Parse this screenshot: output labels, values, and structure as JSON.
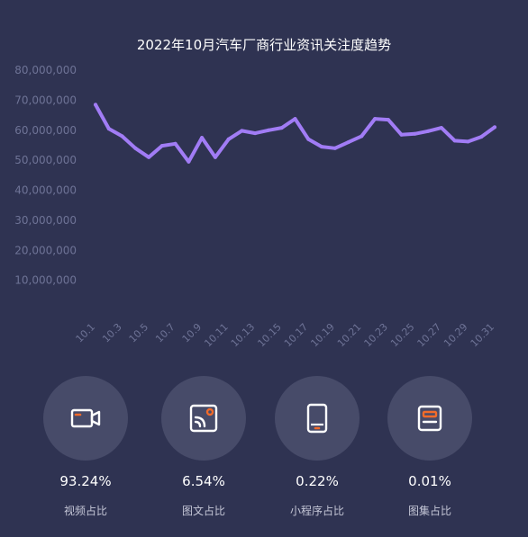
{
  "chart_data": {
    "type": "line",
    "title": "2022年10月汽车厂商行业资讯关注度趋势",
    "xlabel": "",
    "ylabel": "",
    "ylim": [
      0,
      80000000
    ],
    "yticks": [
      "10,000,000",
      "20,000,000",
      "30,000,000",
      "40,000,000",
      "50,000,000",
      "60,000,000",
      "70,000,000",
      "80,000,000"
    ],
    "ytick_values": [
      10000000,
      20000000,
      30000000,
      40000000,
      50000000,
      60000000,
      70000000,
      80000000
    ],
    "x": [
      "10.1",
      "10.2",
      "10.3",
      "10.4",
      "10.5",
      "10.6",
      "10.7",
      "10.8",
      "10.9",
      "10.10",
      "10.11",
      "10.12",
      "10.13",
      "10.14",
      "10.15",
      "10.16",
      "10.17",
      "10.18",
      "10.19",
      "10.20",
      "10.21",
      "10.22",
      "10.23",
      "10.24",
      "10.25",
      "10.26",
      "10.27",
      "10.28",
      "10.29",
      "10.30",
      "10.31"
    ],
    "xtick_labels": [
      "10.1",
      "10.3",
      "10.5",
      "10.7",
      "10.9",
      "10.11",
      "10.13",
      "10.15",
      "10.17",
      "10.19",
      "10.21",
      "10.23",
      "10.25",
      "10.27",
      "10.29",
      "10.31"
    ],
    "series": [
      {
        "color": "#a17cf5",
        "values": [
          68500000,
          60500000,
          58000000,
          54000000,
          51000000,
          54800000,
          55500000,
          49500000,
          57500000,
          51000000,
          57000000,
          59800000,
          59000000,
          60000000,
          60800000,
          63800000,
          57000000,
          54500000,
          54000000,
          56000000,
          58000000,
          63800000,
          63500000,
          58500000,
          58800000,
          59700000,
          60800000,
          56500000,
          56200000,
          57800000,
          61000000
        ]
      }
    ],
    "grid": false,
    "legend": "none"
  },
  "colors": {
    "background": "#2f3352",
    "line": "#a17cf5",
    "tick_text": "#6e7396",
    "circle_bg": "#474b69",
    "icon_stroke": "#ffffff",
    "icon_accent": "#f26b2a"
  },
  "stats": [
    {
      "icon": "video-camera-icon",
      "percent": "93.24%",
      "label": "视频占比"
    },
    {
      "icon": "image-text-icon",
      "percent": "6.54%",
      "label": "图文占比"
    },
    {
      "icon": "mini-program-icon",
      "percent": "0.22%",
      "label": "小程序占比"
    },
    {
      "icon": "gallery-icon",
      "percent": "0.01%",
      "label": "图集占比"
    }
  ]
}
